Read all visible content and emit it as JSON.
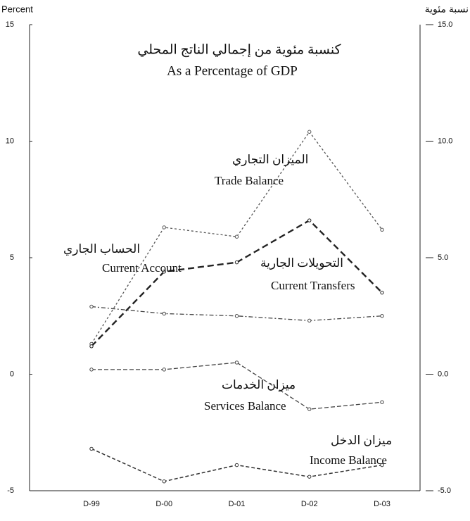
{
  "chart_data": {
    "type": "line",
    "title": "كنسبة مئوية من إجمالي الناتج المحلي",
    "subtitle": "As a Percentage of GDP",
    "y_label": "Percent",
    "y2_label": "نسبة مئوية",
    "categories": [
      "D-99",
      "D-00",
      "D-01",
      "D-02",
      "D-03"
    ],
    "series": [
      {
        "name": "Trade Balance",
        "name_ar": "الميزان التجاري",
        "color": "#555555",
        "values": [
          1.3,
          6.3,
          5.9,
          10.4,
          6.2
        ]
      },
      {
        "name": "Current Account",
        "name_ar": "الحساب الجاري",
        "color": "#222222",
        "values": [
          1.2,
          4.4,
          4.8,
          6.6,
          3.5
        ]
      },
      {
        "name": "Current Transfers",
        "name_ar": "التحويلات الجارية",
        "color": "#444444",
        "values": [
          2.9,
          2.6,
          2.5,
          2.3,
          2.5
        ]
      },
      {
        "name": "Services Balance",
        "name_ar": "ميزان الخدمات",
        "color": "#444444",
        "values": [
          0.2,
          0.2,
          0.5,
          -1.5,
          -1.2
        ]
      },
      {
        "name": "Income Balance",
        "name_ar": "ميزان الدخل",
        "color": "#333333",
        "values": [
          -3.2,
          -4.6,
          -3.9,
          -4.4,
          -3.9
        ]
      }
    ],
    "ylim": [
      -5,
      15
    ],
    "yticks": [
      -5,
      0,
      5,
      10,
      15
    ],
    "y2lim": [
      -5,
      15
    ],
    "y2ticks": [
      {
        "value": -5,
        "label": "-5.0"
      },
      {
        "value": 0,
        "label": "0.0"
      },
      {
        "value": 5,
        "label": "5.0"
      },
      {
        "value": 10,
        "label": "10.0"
      },
      {
        "value": 15,
        "label": "15.0"
      }
    ]
  }
}
